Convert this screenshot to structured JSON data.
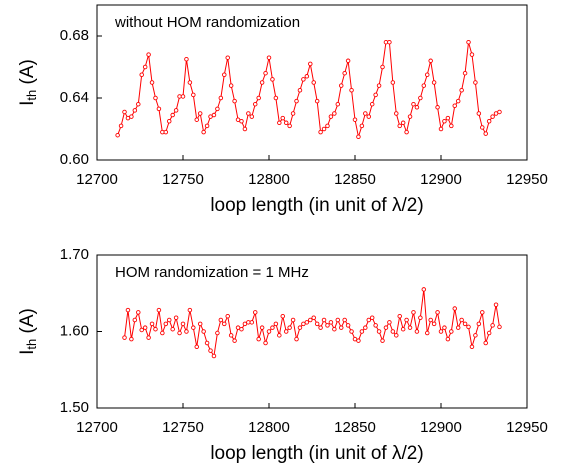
{
  "chart_data": [
    {
      "type": "line",
      "annotation": "without HOM randomization",
      "xlabel": "loop length (in unit of λ/2)",
      "ylabel": {
        "main": "I",
        "sub": "th",
        "rest": " (A)"
      },
      "xlim": [
        12700,
        12950
      ],
      "xticks": [
        12700,
        12750,
        12800,
        12850,
        12900,
        12950
      ],
      "ylim": [
        0.6,
        0.7
      ],
      "yticks": [
        {
          "value": 0.6,
          "label": "0.60"
        },
        0.64,
        0.68
      ],
      "series": [
        {
          "color": "#ff0000",
          "x": [
            12712,
            12714,
            12716,
            12718,
            12720,
            12722,
            12724,
            12726,
            12728,
            12730,
            12732,
            12734,
            12736,
            12738,
            12740,
            12742,
            12744,
            12746,
            12748,
            12750,
            12752,
            12754,
            12756,
            12758,
            12760,
            12762,
            12764,
            12766,
            12768,
            12770,
            12772,
            12774,
            12776,
            12778,
            12780,
            12782,
            12784,
            12786,
            12788,
            12790,
            12792,
            12794,
            12796,
            12798,
            12800,
            12802,
            12804,
            12806,
            12808,
            12810,
            12812,
            12814,
            12816,
            12818,
            12820,
            12822,
            12824,
            12826,
            12828,
            12830,
            12832,
            12834,
            12836,
            12838,
            12840,
            12842,
            12844,
            12846,
            12848,
            12850,
            12852,
            12854,
            12856,
            12858,
            12860,
            12862,
            12864,
            12866,
            12868,
            12870,
            12872,
            12874,
            12876,
            12878,
            12880,
            12882,
            12884,
            12886,
            12888,
            12890,
            12892,
            12894,
            12896,
            12898,
            12900,
            12902,
            12904,
            12906,
            12908,
            12910,
            12912,
            12914,
            12916,
            12918,
            12920,
            12922,
            12924,
            12926,
            12928,
            12930,
            12932,
            12934
          ],
          "values": [
            0.616,
            0.622,
            0.631,
            0.627,
            0.628,
            0.632,
            0.636,
            0.655,
            0.66,
            0.668,
            0.65,
            0.64,
            0.633,
            0.618,
            0.618,
            0.625,
            0.629,
            0.632,
            0.641,
            0.641,
            0.665,
            0.65,
            0.642,
            0.626,
            0.63,
            0.618,
            0.622,
            0.628,
            0.629,
            0.633,
            0.64,
            0.655,
            0.666,
            0.648,
            0.638,
            0.626,
            0.625,
            0.62,
            0.63,
            0.628,
            0.636,
            0.64,
            0.65,
            0.656,
            0.666,
            0.652,
            0.64,
            0.624,
            0.627,
            0.624,
            0.622,
            0.63,
            0.638,
            0.645,
            0.652,
            0.654,
            0.662,
            0.65,
            0.638,
            0.618,
            0.62,
            0.622,
            0.628,
            0.63,
            0.636,
            0.648,
            0.656,
            0.664,
            0.645,
            0.626,
            0.615,
            0.622,
            0.63,
            0.628,
            0.636,
            0.642,
            0.648,
            0.66,
            0.676,
            0.676,
            0.65,
            0.63,
            0.622,
            0.624,
            0.618,
            0.628,
            0.636,
            0.634,
            0.64,
            0.648,
            0.655,
            0.664,
            0.65,
            0.634,
            0.62,
            0.625,
            0.627,
            0.622,
            0.635,
            0.638,
            0.645,
            0.656,
            0.676,
            0.668,
            0.65,
            0.63,
            0.621,
            0.617,
            0.625,
            0.628,
            0.63,
            0.631
          ]
        }
      ]
    },
    {
      "type": "line",
      "annotation": "HOM randomization = 1 MHz",
      "xlabel": "loop length (in unit of λ/2)",
      "ylabel": {
        "main": "I",
        "sub": "th",
        "rest": " (A)"
      },
      "xlim": [
        12700,
        12950
      ],
      "xticks": [
        12700,
        12750,
        12800,
        12850,
        12900,
        12950
      ],
      "ylim": [
        1.5,
        1.7
      ],
      "yticks": [
        {
          "value": 1.5,
          "label": "1.50"
        },
        {
          "value": 1.6,
          "label": "1.60"
        },
        {
          "value": 1.7,
          "label": "1.70"
        }
      ],
      "series": [
        {
          "color": "#ff0000",
          "x": [
            12716,
            12718,
            12720,
            12722,
            12724,
            12726,
            12728,
            12730,
            12732,
            12734,
            12736,
            12738,
            12740,
            12742,
            12744,
            12746,
            12748,
            12750,
            12752,
            12754,
            12756,
            12758,
            12760,
            12762,
            12764,
            12766,
            12768,
            12770,
            12772,
            12774,
            12776,
            12778,
            12780,
            12782,
            12784,
            12786,
            12788,
            12790,
            12792,
            12794,
            12796,
            12798,
            12800,
            12802,
            12804,
            12806,
            12808,
            12810,
            12812,
            12814,
            12816,
            12818,
            12820,
            12822,
            12824,
            12826,
            12828,
            12830,
            12832,
            12834,
            12836,
            12838,
            12840,
            12842,
            12844,
            12846,
            12848,
            12850,
            12852,
            12854,
            12856,
            12858,
            12860,
            12862,
            12864,
            12866,
            12868,
            12870,
            12872,
            12874,
            12876,
            12878,
            12880,
            12882,
            12884,
            12886,
            12888,
            12890,
            12892,
            12894,
            12896,
            12898,
            12900,
            12902,
            12904,
            12906,
            12908,
            12910,
            12912,
            12914,
            12916,
            12918,
            12920,
            12922,
            12924,
            12926,
            12928,
            12930,
            12932,
            12934
          ],
          "values": [
            1.592,
            1.628,
            1.59,
            1.615,
            1.625,
            1.602,
            1.605,
            1.592,
            1.61,
            1.603,
            1.628,
            1.598,
            1.61,
            1.615,
            1.603,
            1.618,
            1.598,
            1.61,
            1.6,
            1.628,
            1.605,
            1.58,
            1.61,
            1.6,
            1.585,
            1.575,
            1.568,
            1.598,
            1.615,
            1.61,
            1.62,
            1.595,
            1.588,
            1.605,
            1.603,
            1.61,
            1.612,
            1.612,
            1.625,
            1.59,
            1.605,
            1.585,
            1.6,
            1.605,
            1.61,
            1.595,
            1.62,
            1.6,
            1.605,
            1.615,
            1.59,
            1.605,
            1.61,
            1.612,
            1.615,
            1.618,
            1.61,
            1.605,
            1.615,
            1.608,
            1.612,
            1.603,
            1.615,
            1.605,
            1.615,
            1.608,
            1.6,
            1.59,
            1.588,
            1.6,
            1.605,
            1.615,
            1.618,
            1.608,
            1.6,
            1.588,
            1.605,
            1.612,
            1.6,
            1.595,
            1.62,
            1.603,
            1.615,
            1.605,
            1.625,
            1.6,
            1.618,
            1.655,
            1.598,
            1.615,
            1.61,
            1.625,
            1.6,
            1.605,
            1.59,
            1.6,
            1.63,
            1.605,
            1.615,
            1.61,
            1.606,
            1.58,
            1.595,
            1.61,
            1.625,
            1.585,
            1.598,
            1.608,
            1.635,
            1.606
          ]
        }
      ]
    }
  ]
}
